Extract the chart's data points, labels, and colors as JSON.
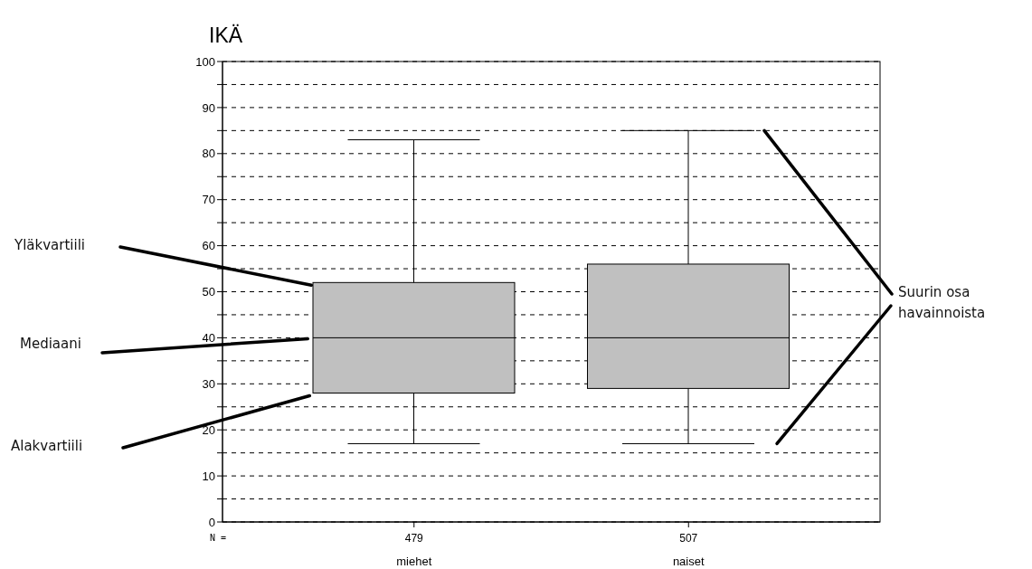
{
  "chart_data": {
    "type": "box",
    "title": "IKÄ",
    "categories": [
      "miehet",
      "naiset"
    ],
    "boxes": [
      {
        "low": 17,
        "q1": 28,
        "median": 40,
        "q3": 52,
        "high": 83
      },
      {
        "low": 17,
        "q1": 29,
        "median": 40,
        "q3": 56,
        "high": 85
      }
    ],
    "color": "#c0c0c0",
    "ylim": [
      0,
      100
    ],
    "yticks": [
      0,
      {
        "value": 5,
        "label": null
      },
      10,
      {
        "value": 15,
        "label": null
      },
      20,
      {
        "value": 25,
        "label": null
      },
      30,
      {
        "value": 35,
        "label": null
      },
      40,
      {
        "value": 45,
        "label": null
      },
      50,
      {
        "value": 55,
        "label": null
      },
      60,
      {
        "value": 65,
        "label": null
      },
      70,
      {
        "value": 75,
        "label": null
      },
      80,
      {
        "value": 85,
        "label": null
      },
      90,
      {
        "value": 95,
        "label": null
      },
      100
    ],
    "grid": "y",
    "annotations": [
      "N =",
      {
        "text": "479",
        "x": "miehet"
      },
      {
        "text": "507",
        "x": "naiset"
      },
      "Yläkvartiili",
      "Mediaani",
      "Alakvartiili",
      "Suurin osa havainnoista"
    ]
  }
}
